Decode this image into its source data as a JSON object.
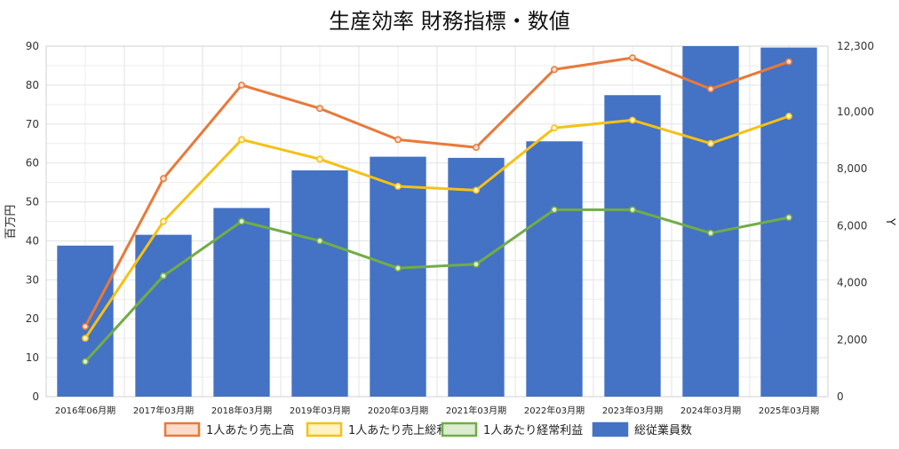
{
  "chart_data": {
    "type": "bar",
    "title": "生産効率 財務指標・数値",
    "ylabel_left": "百万円",
    "ylabel_right": "Y",
    "categories": [
      "2016年06月期",
      "2017年03月期",
      "2018年03月期",
      "2019年03月期",
      "2020年03月期",
      "2021年03月期",
      "2022年03月期",
      "2023年03月期",
      "2024年03月期",
      "2025年03月期"
    ],
    "ylim_left": [
      0,
      90
    ],
    "yticks_left": [
      "0",
      "10",
      "20",
      "30",
      "40",
      "50",
      "60",
      "70",
      "80",
      "90"
    ],
    "ylim_right": [
      0,
      12300
    ],
    "yticks_right": [
      {
        "value": 0,
        "label": "0"
      },
      {
        "value": 2000,
        "label": "2,000"
      },
      {
        "value": 4000,
        "label": "4,000"
      },
      {
        "value": 6000,
        "label": "6,000"
      },
      {
        "value": 8000,
        "label": "8,000"
      },
      {
        "value": 10000,
        "label": "10,000"
      },
      {
        "value": 12300,
        "label": "12,300"
      }
    ],
    "grid": true,
    "legend_position": "bottom",
    "bar_series": {
      "name": "総従業員数",
      "color": "#4472c4",
      "axis": "right",
      "values": [
        5300,
        5680,
        6620,
        7940,
        8420,
        8380,
        8960,
        10580,
        12300,
        12250
      ]
    },
    "line_series": [
      {
        "name": "1人あたり売上高",
        "color": "#e8793a",
        "fill": "#fcdcc8",
        "axis": "left",
        "values": [
          18,
          56,
          80,
          74,
          66,
          64,
          84,
          87,
          79,
          86
        ]
      },
      {
        "name": "1人あたり売上総利益",
        "color": "#f5c116",
        "fill": "#fff2c4",
        "axis": "left",
        "values": [
          15,
          45,
          66,
          61,
          54,
          53,
          69,
          71,
          65,
          72
        ]
      },
      {
        "name": "1人あたり経常利益",
        "color": "#71ad47",
        "fill": "#dcecd0",
        "axis": "left",
        "values": [
          9,
          31,
          45,
          40,
          33,
          34,
          48,
          48,
          42,
          46
        ]
      }
    ]
  }
}
